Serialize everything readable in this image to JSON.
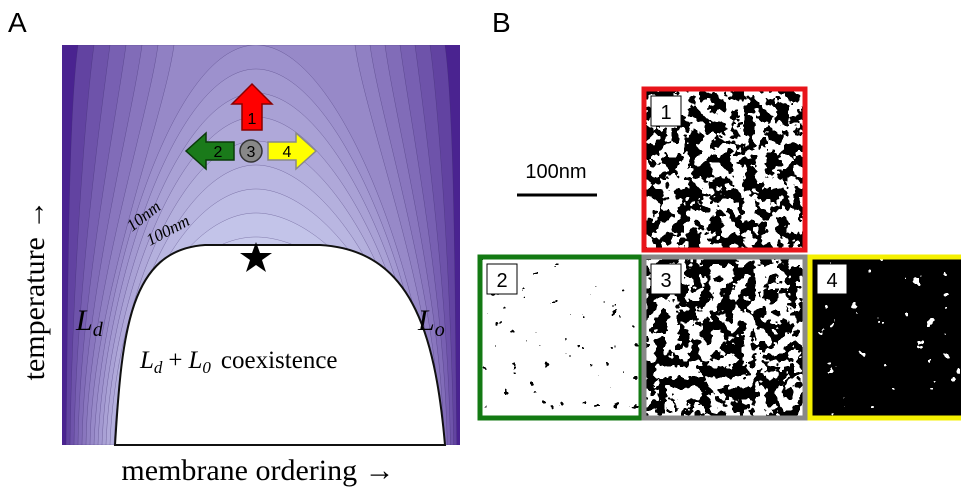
{
  "panel_a": {
    "label": "A",
    "y_axis_label": "temperature →",
    "x_axis_label": "membrane ordering →",
    "contour_labels": [
      "10nm",
      "100nm"
    ],
    "phase_left": {
      "symbol": "L",
      "subscript": "d"
    },
    "phase_right": {
      "symbol": "L",
      "subscript": "o"
    },
    "coexistence": {
      "first": {
        "symbol": "L",
        "subscript": "d"
      },
      "operator": "+",
      "second": {
        "symbol": "L",
        "subscript": "0"
      },
      "word": "coexistence"
    },
    "arrow_markers": [
      "1",
      "2",
      "3",
      "4"
    ]
  },
  "panel_b": {
    "label": "B",
    "scale_bar": "100nm",
    "images": [
      "1",
      "2",
      "3",
      "4"
    ]
  }
}
